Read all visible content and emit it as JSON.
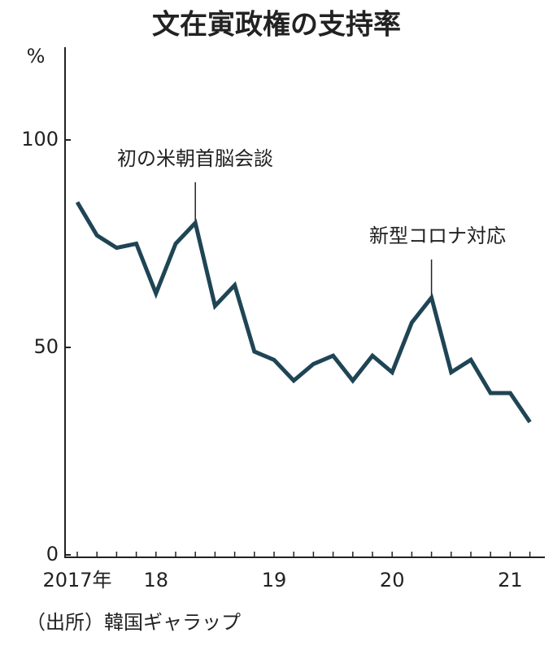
{
  "chart_data": {
    "type": "line",
    "title": "文在寅政権の支持率",
    "y_label": "%",
    "categories": [
      "2017年",
      null,
      null,
      null,
      "18",
      null,
      null,
      null,
      null,
      null,
      "19",
      null,
      null,
      null,
      null,
      null,
      "20",
      null,
      null,
      null,
      null,
      null,
      "21",
      null
    ],
    "values": [
      85,
      77,
      74,
      75,
      63,
      75,
      80,
      60,
      65,
      49,
      47,
      42,
      46,
      48,
      42,
      48,
      44,
      56,
      62,
      44,
      47,
      39,
      39,
      32
    ],
    "color": "#1f4555",
    "ylim": [
      0,
      120
    ],
    "yticks": [
      0,
      50,
      100
    ],
    "grid": false,
    "annotations": [
      "初の米朝首脳会談",
      "新型コロナ対応"
    ],
    "source": "（出所）韓国ギャラップ"
  }
}
